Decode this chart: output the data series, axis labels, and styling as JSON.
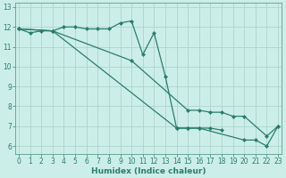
{
  "xlabel": "Humidex (Indice chaleur)",
  "line_color": "#2a7d6e",
  "bg_color": "#cceee8",
  "grid_color": "#aed4cc",
  "spine_color": "#5a9e90",
  "line1_x": [
    0,
    1,
    2,
    3,
    4,
    5,
    6,
    7,
    8,
    9,
    10,
    11,
    12,
    13,
    14,
    15,
    16,
    17,
    18
  ],
  "line1_y": [
    11.9,
    11.7,
    11.8,
    11.8,
    12.0,
    12.0,
    11.9,
    11.9,
    11.9,
    12.2,
    12.3,
    10.6,
    11.7,
    9.5,
    6.9,
    6.9,
    6.9,
    6.9,
    6.8
  ],
  "line2_x": [
    0,
    3,
    14,
    15,
    16,
    20,
    21,
    22,
    23
  ],
  "line2_y": [
    11.9,
    11.8,
    6.9,
    6.9,
    6.9,
    6.3,
    6.3,
    6.0,
    7.0
  ],
  "line3_x": [
    0,
    3,
    10,
    15,
    16,
    17,
    18,
    19,
    20,
    22,
    23
  ],
  "line3_y": [
    11.9,
    11.8,
    10.3,
    7.8,
    7.8,
    7.7,
    7.7,
    7.5,
    7.5,
    6.5,
    7.0
  ],
  "ylim": [
    5.6,
    13.2
  ],
  "xlim": [
    -0.3,
    23.3
  ],
  "yticks": [
    6,
    7,
    8,
    9,
    10,
    11,
    12,
    13
  ],
  "xticks": [
    0,
    1,
    2,
    3,
    4,
    5,
    6,
    7,
    8,
    9,
    10,
    11,
    12,
    13,
    14,
    15,
    16,
    17,
    18,
    19,
    20,
    21,
    22,
    23
  ],
  "tick_fontsize": 5.5,
  "label_fontsize": 6.5
}
